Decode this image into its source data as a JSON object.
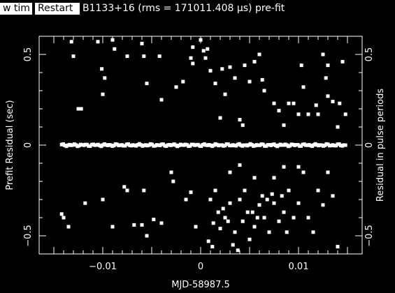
{
  "toolbar": {
    "view_label": "w tim",
    "restart_label": "Restart"
  },
  "title": "B1133+16 (rms = 171011.408 μs) pre-fit",
  "chart_data": {
    "type": "scatter",
    "xlabel": "MJD-58987.5",
    "ylabel": "Prefit Residual (sec)",
    "ylabel_right": "Residual in pulse periods",
    "xlim": [
      -0.0165,
      0.0165
    ],
    "ylim": [
      -0.6,
      0.6
    ],
    "x_ticks": [
      -0.01,
      0,
      0.01
    ],
    "x_tick_labels": [
      "−0.01",
      "0",
      "0.01"
    ],
    "y_ticks": [
      -0.5,
      0,
      0.5
    ],
    "y_tick_labels": [
      "−0.5",
      "0",
      "0.5"
    ],
    "y2_ticks": [
      -0.5,
      0,
      0.5
    ],
    "y2_tick_labels": [
      "−0.5",
      "0",
      "0.5"
    ],
    "grid": false,
    "colors": {
      "background": "#000000",
      "foreground": "#ffffff"
    },
    "series": [
      {
        "points": [
          [
            -0.0132,
            0.57
          ],
          [
            -0.013,
            0.49
          ],
          [
            -0.0125,
            0.2
          ],
          [
            -0.0122,
            0.2
          ],
          [
            -0.0105,
            0.57
          ],
          [
            -0.0101,
            0.42
          ],
          [
            -0.01,
            0.28
          ],
          [
            -0.0098,
            0.37
          ],
          [
            -0.009,
            0.58
          ],
          [
            -0.0088,
            0.53
          ],
          [
            -0.0075,
            0.49
          ],
          [
            -0.006,
            0.56
          ],
          [
            -0.0058,
            0.49
          ],
          [
            -0.0055,
            0.34
          ],
          [
            -0.0042,
            0.49
          ],
          [
            -0.004,
            0.25
          ],
          [
            -0.0025,
            0.32
          ],
          [
            -0.0018,
            0.35
          ],
          [
            -0.001,
            0.48
          ],
          [
            -0.0008,
            0.54
          ],
          [
            -0.0008,
            0.45
          ],
          [
            0.0,
            0.58
          ],
          [
            0.0003,
            0.52
          ],
          [
            0.0005,
            0.48
          ],
          [
            0.0007,
            0.53
          ],
          [
            0.001,
            0.41
          ],
          [
            0.0015,
            0.34
          ],
          [
            0.002,
            0.15
          ],
          [
            0.0022,
            0.42
          ],
          [
            0.0025,
            0.28
          ],
          [
            0.003,
            0.43
          ],
          [
            0.0035,
            0.37
          ],
          [
            0.004,
            0.14
          ],
          [
            0.0043,
            0.11
          ],
          [
            0.0045,
            0.44
          ],
          [
            0.005,
            0.35
          ],
          [
            0.0055,
            0.46
          ],
          [
            0.006,
            0.5
          ],
          [
            0.0063,
            0.36
          ],
          [
            0.0065,
            0.3
          ],
          [
            0.0075,
            0.23
          ],
          [
            0.008,
            0.19
          ],
          [
            0.0085,
            0.11
          ],
          [
            0.009,
            0.23
          ],
          [
            0.0095,
            0.23
          ],
          [
            0.01,
            0.17
          ],
          [
            0.0103,
            0.44
          ],
          [
            0.0105,
            0.32
          ],
          [
            0.011,
            0.17
          ],
          [
            0.0118,
            0.22
          ],
          [
            0.012,
            0.17
          ],
          [
            0.0125,
            0.5
          ],
          [
            0.0128,
            0.37
          ],
          [
            0.013,
            0.44
          ],
          [
            0.013,
            0.27
          ],
          [
            0.0135,
            0.24
          ],
          [
            0.014,
            0.1
          ],
          [
            0.0142,
            0.23
          ],
          [
            0.0145,
            0.46
          ],
          [
            0.0148,
            0.17
          ],
          [
            -0.0142,
            -0.38
          ],
          [
            -0.014,
            -0.4
          ],
          [
            -0.0135,
            -0.45
          ],
          [
            -0.0118,
            -0.32
          ],
          [
            -0.01,
            -0.3
          ],
          [
            -0.009,
            -0.45
          ],
          [
            -0.0078,
            -0.23
          ],
          [
            -0.0075,
            -0.25
          ],
          [
            -0.0068,
            -0.44
          ],
          [
            -0.006,
            -0.44
          ],
          [
            -0.0058,
            -0.25
          ],
          [
            -0.0055,
            -0.5
          ],
          [
            -0.0048,
            -0.41
          ],
          [
            -0.004,
            -0.43
          ],
          [
            -0.003,
            -0.15
          ],
          [
            -0.0028,
            -0.2
          ],
          [
            -0.0015,
            -0.3
          ],
          [
            -0.001,
            -0.26
          ],
          [
            -0.0005,
            -0.45
          ],
          [
            0.0008,
            -0.53
          ],
          [
            0.001,
            -0.3
          ],
          [
            0.0012,
            -0.56
          ],
          [
            0.0013,
            -0.43
          ],
          [
            0.0015,
            -0.25
          ],
          [
            0.0018,
            -0.37
          ],
          [
            0.002,
            -0.46
          ],
          [
            0.0023,
            -0.35
          ],
          [
            0.0025,
            -0.4
          ],
          [
            0.0028,
            -0.42
          ],
          [
            0.003,
            -0.32
          ],
          [
            0.0033,
            -0.55
          ],
          [
            0.0035,
            -0.48
          ],
          [
            0.0038,
            -0.58
          ],
          [
            0.004,
            -0.3
          ],
          [
            0.0043,
            -0.42
          ],
          [
            0.0045,
            -0.25
          ],
          [
            0.0048,
            -0.37
          ],
          [
            0.005,
            -0.52
          ],
          [
            0.0053,
            -0.37
          ],
          [
            0.0055,
            -0.45
          ],
          [
            0.0058,
            -0.4
          ],
          [
            0.006,
            -0.33
          ],
          [
            0.0063,
            -0.28
          ],
          [
            0.0065,
            -0.4
          ],
          [
            0.0068,
            -0.3
          ],
          [
            0.007,
            -0.48
          ],
          [
            0.0073,
            -0.27
          ],
          [
            0.0075,
            -0.32
          ],
          [
            0.008,
            -0.42
          ],
          [
            0.0083,
            -0.28
          ],
          [
            0.0085,
            -0.37
          ],
          [
            0.0088,
            -0.48
          ],
          [
            0.009,
            -0.25
          ],
          [
            0.0095,
            -0.4
          ],
          [
            0.01,
            -0.32
          ],
          [
            0.0105,
            -0.15
          ],
          [
            0.011,
            -0.4
          ],
          [
            0.0115,
            -0.48
          ],
          [
            0.012,
            -0.25
          ],
          [
            0.0125,
            -0.33
          ],
          [
            0.013,
            -0.15
          ],
          [
            0.0135,
            -0.28
          ],
          [
            0.014,
            -0.56
          ],
          [
            0.003,
            -0.15
          ],
          [
            0.004,
            -0.11
          ],
          [
            0.0055,
            -0.18
          ],
          [
            0.0075,
            -0.18
          ],
          [
            0.0085,
            -0.12
          ],
          [
            0.01,
            -0.12
          ]
        ]
      }
    ]
  }
}
